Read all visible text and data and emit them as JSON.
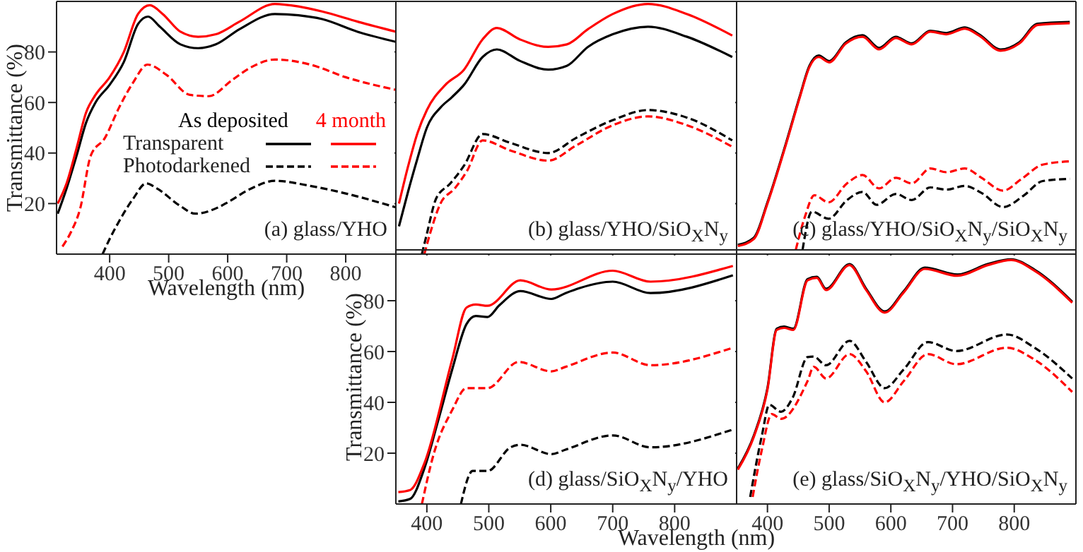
{
  "chart_data": [
    {
      "type": "line",
      "title": "(a) glass/YHO",
      "xlabel": "Wavelength (nm)",
      "ylabel": "Transmittance (%)",
      "xlim": [
        310,
        885
      ],
      "ylim": [
        0,
        100
      ],
      "xticks": [
        400,
        500,
        600,
        700,
        800
      ],
      "yticks": [
        20,
        40,
        60,
        80
      ],
      "legend": "right",
      "annotations": [
        "As deposited",
        "4 month"
      ],
      "series": [
        {
          "name": "Transparent",
          "color": "#000000",
          "line_style": "solid",
          "x": [
            312,
            327,
            344,
            360,
            376,
            400,
            424,
            448,
            465,
            485,
            520,
            550,
            580,
            620,
            680,
            720,
            760,
            820,
            885
          ],
          "values": [
            16,
            26,
            39,
            52,
            60,
            67,
            76,
            91,
            94,
            90,
            83,
            81.5,
            83,
            89,
            95,
            94.5,
            93,
            88,
            84
          ]
        },
        {
          "name": "Photodarkened",
          "color": "#000000",
          "line_style": "dashed",
          "x": [
            388,
            400,
            416,
            440,
            462,
            480,
            520,
            545,
            584,
            600,
            640,
            680,
            740,
            800,
            885
          ],
          "values": [
            0,
            6,
            13,
            22,
            28,
            26,
            19,
            16,
            18.5,
            20.5,
            26,
            29,
            27,
            24,
            18.5
          ]
        },
        {
          "color": "#ff0000",
          "line_style": "solid",
          "x": [
            312,
            327,
            344,
            360,
            376,
            400,
            424,
            448,
            468,
            490,
            520,
            550,
            580,
            620,
            680,
            720,
            760,
            820,
            885
          ],
          "values": [
            20,
            28,
            42,
            56,
            63,
            70,
            80,
            95,
            98.5,
            95,
            88,
            86,
            87,
            92,
            99,
            98,
            96,
            92,
            88
          ]
        },
        {
          "color": "#ff0000",
          "line_style": "dashed",
          "x": [
            320,
            335,
            350,
            368,
            392,
            416,
            440,
            464,
            496,
            536,
            568,
            608,
            640,
            680,
            740,
            800,
            885
          ],
          "values": [
            3,
            9,
            18,
            39,
            46,
            58,
            68,
            75,
            71,
            63,
            62.5,
            69,
            74,
            77,
            75,
            70,
            65
          ]
        }
      ]
    },
    {
      "type": "line",
      "title": "(b) glass/YHO/SiO$_{X}$N$_{y}$",
      "xlim": [
        350,
        900
      ],
      "ylim": [
        0,
        100
      ],
      "xticks": [
        400,
        500,
        600,
        700,
        800
      ],
      "yticks": [
        20,
        40,
        60,
        80
      ],
      "tick_labels": false,
      "series": [
        {
          "color": "#000000",
          "line_style": "solid",
          "x": [
            355,
            370,
            385,
            400,
            422,
            440,
            460,
            490,
            513,
            550,
            596,
            626,
            660,
            700,
            757,
            820,
            893
          ],
          "values": [
            11,
            25,
            38,
            50,
            58,
            62,
            67,
            78,
            81,
            76.5,
            73,
            74.5,
            82,
            87,
            90,
            86,
            78
          ]
        },
        {
          "color": "#000000",
          "line_style": "dashed",
          "x": [
            392,
            400,
            415,
            438,
            460,
            490,
            535,
            596,
            641,
            700,
            757,
            820,
            893
          ],
          "values": [
            0,
            8,
            22,
            28,
            35,
            47.5,
            44,
            40,
            46,
            53,
            57,
            54,
            45
          ]
        },
        {
          "color": "#ff0000",
          "line_style": "solid",
          "x": [
            355,
            370,
            385,
            400,
            430,
            460,
            490,
            513,
            550,
            596,
            626,
            660,
            700,
            757,
            820,
            893
          ],
          "values": [
            20,
            35,
            48,
            57,
            67,
            73,
            85,
            89.5,
            85,
            82,
            83,
            89,
            95,
            99,
            95,
            86.5
          ]
        },
        {
          "color": "#ff0000",
          "line_style": "dashed",
          "x": [
            396,
            405,
            422,
            445,
            465,
            490,
            535,
            596,
            641,
            700,
            757,
            820,
            893
          ],
          "values": [
            0,
            8,
            20,
            26,
            33,
            45,
            41,
            37,
            43,
            51,
            54.5,
            51,
            42.5
          ]
        }
      ]
    },
    {
      "type": "line",
      "title": "(c) glass/YHO/SiO$_{X}$N$_{y}$/SiO$_{X}$N$_{y}$",
      "xlim": [
        350,
        900
      ],
      "ylim": [
        0,
        100
      ],
      "xticks": [
        400,
        500,
        600,
        700,
        800
      ],
      "yticks": [
        20,
        40,
        60,
        80
      ],
      "tick_labels": false,
      "series": [
        {
          "color": "#000000",
          "line_style": "solid",
          "x": [
            352,
            378,
            400,
            431,
            453,
            468,
            483,
            500,
            527,
            554,
            581,
            608,
            634,
            664,
            690,
            720,
            743,
            778,
            808,
            838,
            890
          ],
          "values": [
            3.7,
            6.5,
            20.5,
            44.7,
            63,
            74.5,
            78.6,
            76.4,
            83.8,
            86.6,
            81.6,
            86,
            83.4,
            88.4,
            87.5,
            89.7,
            87,
            81,
            83.8,
            91.2,
            91.9
          ]
        },
        {
          "color": "#000000",
          "line_style": "dashed",
          "x": [
            457,
            472,
            499,
            529,
            554,
            577,
            608,
            634,
            664,
            690,
            720,
            747,
            782,
            816,
            846,
            890
          ],
          "values": [
            1.8,
            16.8,
            14,
            21.4,
            24.6,
            19.5,
            23.8,
            21.4,
            26.4,
            25.5,
            27,
            24.2,
            18.6,
            23.3,
            28.9,
            29.8
          ]
        },
        {
          "color": "#ff0000",
          "line_style": "solid",
          "x": [
            352,
            378,
            400,
            431,
            453,
            468,
            483,
            500,
            527,
            554,
            581,
            608,
            634,
            664,
            690,
            720,
            743,
            778,
            808,
            838,
            890
          ],
          "values": [
            3.2,
            6,
            20,
            44.2,
            62.5,
            74,
            78,
            75.9,
            83.3,
            86,
            81,
            85.5,
            83,
            88,
            87,
            89.2,
            86.5,
            80.5,
            83.3,
            90.7,
            91.4
          ]
        },
        {
          "color": "#ff0000",
          "line_style": "dashed",
          "x": [
            446,
            461,
            476,
            499,
            529,
            554,
            581,
            608,
            634,
            664,
            690,
            720,
            747,
            782,
            812,
            846,
            890
          ],
          "values": [
            1.8,
            15,
            23.3,
            20.5,
            28,
            31.3,
            26,
            30.2,
            28,
            33.9,
            32.4,
            33.9,
            30.2,
            25.1,
            29.8,
            35.4,
            36.7
          ]
        }
      ]
    },
    {
      "type": "line",
      "title": "(d) glass/SiO$_{X}$N$_{y}$/YHO",
      "xlabel": "Wavelength (nm)",
      "ylabel": "Transmittance (%)",
      "xlim": [
        350,
        900
      ],
      "ylim": [
        0,
        100
      ],
      "xticks": [
        400,
        500,
        600,
        700,
        800
      ],
      "yticks": [
        20,
        40,
        60,
        80
      ],
      "series": [
        {
          "color": "#000000",
          "line_style": "solid",
          "x": [
            354,
            373,
            396,
            418,
            441,
            464,
            479,
            498,
            517,
            551,
            601,
            624,
            647,
            700,
            761,
            894
          ],
          "values": [
            1,
            2,
            14,
            32.6,
            53,
            70.8,
            74,
            73.6,
            78.2,
            83.8,
            80.7,
            83,
            85,
            87.5,
            83,
            90
          ]
        },
        {
          "color": "#000000",
          "line_style": "dashed",
          "x": [
            455,
            474,
            498,
            535,
            551,
            601,
            624,
            700,
            761,
            894
          ],
          "values": [
            0,
            13,
            13,
            22.3,
            23.3,
            19.6,
            21.4,
            27,
            22.3,
            29.3
          ]
        },
        {
          "color": "#ff0000",
          "line_style": "solid",
          "x": [
            354,
            373,
            396,
            441,
            464,
            479,
            498,
            551,
            601,
            700,
            761,
            894
          ],
          "values": [
            4.7,
            5.5,
            16,
            57,
            77.3,
            78.5,
            78,
            88,
            84.4,
            91.8,
            87.5,
            93.7
          ]
        },
        {
          "color": "#ff0000",
          "line_style": "dashed",
          "x": [
            392,
            411,
            441,
            464,
            498,
            548,
            601,
            624,
            700,
            761,
            894
          ],
          "values": [
            0,
            19.6,
            37,
            45.6,
            45.6,
            55.9,
            52.2,
            54,
            59.6,
            54.6,
            61.5
          ]
        }
      ]
    },
    {
      "type": "line",
      "title": "(e) glass/SiO$_{X}$N$_{y}$/YHO/SiO$_{X}$N$_{y}$",
      "xlim": [
        350,
        900
      ],
      "ylim": [
        0,
        100
      ],
      "xticks": [
        400,
        500,
        600,
        700,
        800
      ],
      "yticks": [
        20,
        40,
        60,
        80
      ],
      "tick_labels": "x",
      "series": [
        {
          "color": "#000000",
          "line_style": "solid",
          "x": [
            352,
            378,
            400,
            415,
            427,
            442,
            465,
            480,
            495,
            533,
            560,
            590,
            621,
            655,
            708,
            757,
            795,
            833,
            894
          ],
          "values": [
            14,
            27,
            45.6,
            69,
            69.8,
            69,
            88.5,
            89.4,
            84.7,
            94.4,
            84.7,
            75.8,
            83.8,
            93,
            90.3,
            94.4,
            96.3,
            92.2,
            79.6
          ]
        },
        {
          "color": "#000000",
          "line_style": "dashed",
          "x": [
            372,
            391,
            403,
            422,
            441,
            465,
            475,
            495,
            533,
            560,
            590,
            621,
            660,
            706,
            788,
            833,
            894
          ],
          "values": [
            2.8,
            27,
            39,
            36.3,
            41.9,
            57.8,
            58,
            54.6,
            64.2,
            55.9,
            45.6,
            53,
            63.7,
            60.2,
            66.7,
            61.5,
            49.4
          ]
        },
        {
          "color": "#ff0000",
          "line_style": "solid",
          "x": [
            352,
            378,
            400,
            415,
            427,
            442,
            465,
            480,
            495,
            533,
            560,
            590,
            621,
            655,
            708,
            757,
            795,
            833,
            894
          ],
          "values": [
            13.5,
            26.5,
            45,
            68.5,
            69.3,
            68.5,
            88,
            89,
            84.2,
            94,
            84.2,
            75.3,
            83.3,
            92.5,
            89.8,
            94,
            96,
            91.8,
            79.2
          ]
        },
        {
          "color": "#ff0000",
          "line_style": "dashed",
          "x": [
            376,
            391,
            407,
            422,
            465,
            475,
            495,
            533,
            560,
            590,
            621,
            660,
            706,
            788,
            833,
            894
          ],
          "values": [
            2.8,
            21.4,
            35.4,
            33.5,
            48.4,
            54,
            49.4,
            59,
            52.2,
            40,
            48.4,
            59,
            55,
            61.5,
            56.8,
            44.1
          ]
        }
      ]
    }
  ]
}
